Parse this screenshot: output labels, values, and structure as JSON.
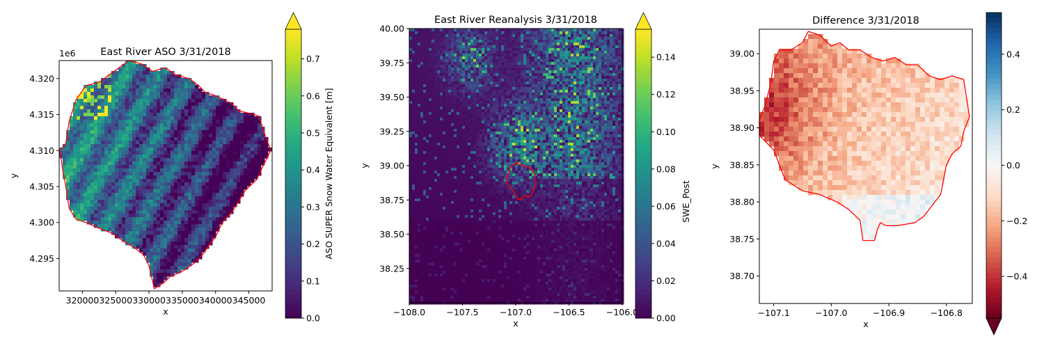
{
  "chart_data": [
    {
      "type": "heatmap",
      "title": "East River ASO 3/31/2018",
      "xlabel": "x",
      "ylabel": "y",
      "y_offset_label": "1e6",
      "xlim": [
        316500,
        348500
      ],
      "ylim": [
        4.2905,
        4.3225
      ],
      "x_ticks": [
        320000,
        325000,
        330000,
        335000,
        340000,
        345000
      ],
      "x_tick_labels": [
        "320000",
        "325000",
        "330000",
        "335000",
        "340000",
        "345000"
      ],
      "y_ticks": [
        4.295,
        4.3,
        4.305,
        4.31,
        4.315,
        4.32
      ],
      "y_tick_labels": [
        "4.295",
        "4.300",
        "4.305",
        "4.310",
        "4.315",
        "4.320"
      ],
      "colormap": "viridis",
      "colorbar": {
        "label": "ASO SUPER Snow Water Equivalent [m]",
        "range": [
          0,
          0.78
        ],
        "ticks": [
          0.0,
          0.1,
          0.2,
          0.3,
          0.4,
          0.5,
          0.6,
          0.7
        ],
        "tick_labels": [
          "0.0",
          "0.1",
          "0.2",
          "0.3",
          "0.4",
          "0.5",
          "0.6",
          "0.7"
        ],
        "extend": "max"
      },
      "outline_color": "#ff0000",
      "outline": [
        [
          316600,
          4.31
        ],
        [
          317500,
          4.311
        ],
        [
          318000,
          4.314
        ],
        [
          319000,
          4.317
        ],
        [
          320500,
          4.319
        ],
        [
          322500,
          4.3195
        ],
        [
          324000,
          4.3205
        ],
        [
          325500,
          4.3215
        ],
        [
          327000,
          4.3225
        ],
        [
          329000,
          4.322
        ],
        [
          330500,
          4.321
        ],
        [
          332500,
          4.3215
        ],
        [
          334000,
          4.3205
        ],
        [
          336000,
          4.32
        ],
        [
          337500,
          4.319
        ],
        [
          338500,
          4.318
        ],
        [
          339500,
          4.3178
        ],
        [
          341000,
          4.3172
        ],
        [
          342500,
          4.3165
        ],
        [
          343500,
          4.3155
        ],
        [
          345000,
          4.3152
        ],
        [
          346500,
          4.3148
        ],
        [
          347500,
          4.312
        ],
        [
          348300,
          4.31
        ],
        [
          347200,
          4.308
        ],
        [
          346200,
          4.306
        ],
        [
          344500,
          4.3045
        ],
        [
          343500,
          4.303
        ],
        [
          342500,
          4.3015
        ],
        [
          341000,
          4.3
        ],
        [
          340000,
          4.298
        ],
        [
          339000,
          4.2968
        ],
        [
          338000,
          4.2955
        ],
        [
          337000,
          4.2945
        ],
        [
          335500,
          4.2935
        ],
        [
          334500,
          4.293
        ],
        [
          333200,
          4.2925
        ],
        [
          332400,
          4.2918
        ],
        [
          331500,
          4.2912
        ],
        [
          330800,
          4.2908
        ],
        [
          330500,
          4.292
        ],
        [
          330000,
          4.294
        ],
        [
          329200,
          4.2955
        ],
        [
          327800,
          4.2965
        ],
        [
          326000,
          4.2975
        ],
        [
          324500,
          4.2985
        ],
        [
          322500,
          4.2992
        ],
        [
          320500,
          4.3
        ],
        [
          319000,
          4.3005
        ],
        [
          318000,
          4.302
        ],
        [
          317500,
          4.305
        ],
        [
          317000,
          4.3075
        ],
        [
          316600,
          4.31
        ]
      ]
    },
    {
      "type": "heatmap",
      "title": "East River Reanalysis 3/31/2018",
      "xlabel": "x",
      "ylabel": "y",
      "xlim": [
        -108.0,
        -106.0
      ],
      "ylim": [
        38.0,
        40.0
      ],
      "x_ticks": [
        -108.0,
        -107.5,
        -107.0,
        -106.5,
        -106.0
      ],
      "x_tick_labels": [
        "−108.0",
        "−107.5",
        "−107.0",
        "−106.5",
        "−106.0"
      ],
      "y_ticks": [
        38.25,
        38.5,
        38.75,
        39.0,
        39.25,
        39.5,
        39.75,
        40.0
      ],
      "y_tick_labels": [
        "38.25",
        "38.50",
        "38.75",
        "39.00",
        "39.25",
        "39.50",
        "39.75",
        "40.00"
      ],
      "colormap": "viridis",
      "colorbar": {
        "label": "SWE_Post",
        "range": [
          0,
          0.155
        ],
        "ticks": [
          0.0,
          0.02,
          0.04,
          0.06,
          0.08,
          0.1,
          0.12,
          0.14
        ],
        "tick_labels": [
          "0.00",
          "0.02",
          "0.04",
          "0.06",
          "0.08",
          "0.10",
          "0.12",
          "0.14"
        ],
        "extend": "max"
      },
      "outline_color": "#ff0000",
      "outline": [
        [
          -107.09,
          38.88
        ],
        [
          -107.08,
          38.92
        ],
        [
          -107.06,
          38.96
        ],
        [
          -107.04,
          39.0
        ],
        [
          -106.99,
          39.02
        ],
        [
          -106.93,
          39.0
        ],
        [
          -106.88,
          38.99
        ],
        [
          -106.84,
          38.97
        ],
        [
          -106.82,
          38.93
        ],
        [
          -106.81,
          38.88
        ],
        [
          -106.83,
          38.82
        ],
        [
          -106.85,
          38.79
        ],
        [
          -106.87,
          38.77
        ],
        [
          -106.93,
          38.78
        ],
        [
          -106.95,
          38.75
        ],
        [
          -106.99,
          38.76
        ],
        [
          -107.01,
          38.8
        ],
        [
          -107.05,
          38.84
        ],
        [
          -107.09,
          38.88
        ]
      ]
    },
    {
      "type": "heatmap",
      "title": "Difference 3/31/2018",
      "xlabel": "x",
      "ylabel": "y",
      "xlim": [
        -107.125,
        -106.755
      ],
      "ylim": [
        38.663,
        39.033
      ],
      "x_ticks": [
        -107.1,
        -107.0,
        -106.9,
        -106.8
      ],
      "x_tick_labels": [
        "−107.1",
        "−107.0",
        "−106.9",
        "−106.8"
      ],
      "y_ticks": [
        38.7,
        38.75,
        38.8,
        38.85,
        38.9,
        38.95,
        39.0
      ],
      "y_tick_labels": [
        "38.70",
        "38.75",
        "38.80",
        "38.85",
        "38.90",
        "38.95",
        "39.00"
      ],
      "colormap": "RdBu",
      "colorbar": {
        "label": "",
        "range": [
          -0.55,
          0.55
        ],
        "ticks": [
          -0.4,
          -0.2,
          0.0,
          0.2,
          0.4
        ],
        "tick_labels": [
          "−0.4",
          "−0.2",
          "0.0",
          "0.2",
          "0.4"
        ],
        "extend": "min"
      },
      "outline_color": "#ff0000",
      "outline": [
        [
          -107.125,
          38.91
        ],
        [
          -107.115,
          38.93
        ],
        [
          -107.105,
          38.96
        ],
        [
          -107.1,
          38.99
        ],
        [
          -107.09,
          39.005
        ],
        [
          -107.07,
          39.005
        ],
        [
          -107.05,
          39.015
        ],
        [
          -107.04,
          39.03
        ],
        [
          -107.02,
          39.025
        ],
        [
          -107.0,
          39.01
        ],
        [
          -106.985,
          39.015
        ],
        [
          -106.97,
          39.005
        ],
        [
          -106.95,
          39.005
        ],
        [
          -106.93,
          38.995
        ],
        [
          -106.91,
          38.99
        ],
        [
          -106.89,
          38.995
        ],
        [
          -106.87,
          38.985
        ],
        [
          -106.85,
          38.985
        ],
        [
          -106.83,
          38.97
        ],
        [
          -106.81,
          38.965
        ],
        [
          -106.79,
          38.97
        ],
        [
          -106.77,
          38.965
        ],
        [
          -106.765,
          38.94
        ],
        [
          -106.76,
          38.915
        ],
        [
          -106.77,
          38.895
        ],
        [
          -106.775,
          38.875
        ],
        [
          -106.79,
          38.865
        ],
        [
          -106.8,
          38.85
        ],
        [
          -106.805,
          38.83
        ],
        [
          -106.81,
          38.81
        ],
        [
          -106.825,
          38.795
        ],
        [
          -106.84,
          38.78
        ],
        [
          -106.855,
          38.772
        ],
        [
          -106.87,
          38.77
        ],
        [
          -106.885,
          38.768
        ],
        [
          -106.905,
          38.768
        ],
        [
          -106.915,
          38.772
        ],
        [
          -106.92,
          38.762
        ],
        [
          -106.925,
          38.748
        ],
        [
          -106.945,
          38.748
        ],
        [
          -106.95,
          38.775
        ],
        [
          -106.97,
          38.79
        ],
        [
          -106.99,
          38.8
        ],
        [
          -107.02,
          38.81
        ],
        [
          -107.05,
          38.815
        ],
        [
          -107.08,
          38.83
        ],
        [
          -107.09,
          38.85
        ],
        [
          -107.1,
          38.87
        ],
        [
          -107.125,
          38.89
        ],
        [
          -107.125,
          38.91
        ]
      ]
    }
  ]
}
